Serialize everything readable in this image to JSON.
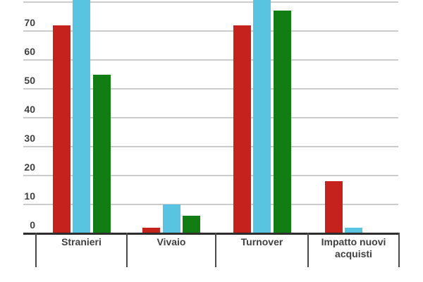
{
  "chart_data": {
    "type": "bar",
    "title": "",
    "xlabel": "",
    "ylabel": "",
    "categories": [
      "Stranieri",
      "Vivaio",
      "Turnover",
      "Impatto nuovi acquisti"
    ],
    "series": [
      {
        "name": "",
        "color_name": "red",
        "color": "#c5221e",
        "values": [
          72,
          2,
          72,
          18
        ]
      },
      {
        "name": "",
        "color_name": "cyan",
        "color": "#58c4e1",
        "values": [
          85,
          10,
          85,
          2
        ],
        "clipped": [
          true,
          false,
          true,
          false
        ]
      },
      {
        "name": "",
        "color_name": "green",
        "color": "#127d12",
        "values": [
          55,
          6,
          77,
          0
        ]
      }
    ],
    "y_ticks": [
      0,
      10,
      20,
      30,
      40,
      50,
      60,
      70
    ],
    "extra_gridline_values": [
      80
    ],
    "ylim_visible": [
      0,
      80.5
    ],
    "grid": true,
    "legend_position": "none-visible",
    "note": "cyan bars for Stranieri and Turnover extend past the top edge of the image (value above visible range); chart is cropped at top and title/legend are not visible",
    "colors": {
      "gridline": "#cccccc",
      "axis": "#2e2e2e",
      "tick": "#4a4a4a",
      "label_text": "#3f3f3f",
      "background": "#ffffff"
    }
  }
}
